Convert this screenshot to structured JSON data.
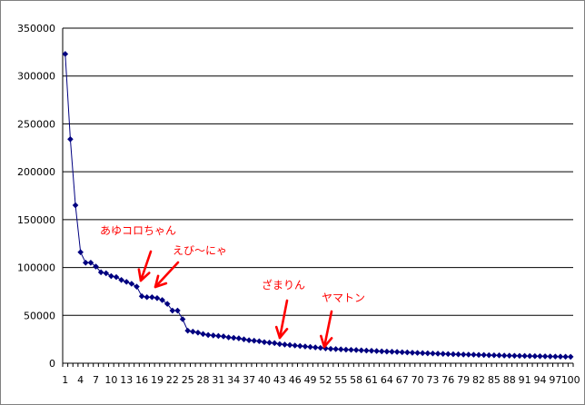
{
  "chart_data": {
    "type": "line",
    "title": "",
    "xlabel": "",
    "ylabel": "",
    "ylim": [
      0,
      350000
    ],
    "y_ticks": [
      0,
      50000,
      100000,
      150000,
      200000,
      250000,
      300000,
      350000
    ],
    "y_tick_labels": [
      "0",
      "50000",
      "100000",
      "150000",
      "200000",
      "250000",
      "300000",
      "350000"
    ],
    "x_count": 100,
    "x_tick_labels": [
      "1",
      "4",
      "7",
      "10",
      "13",
      "16",
      "19",
      "22",
      "25",
      "28",
      "31",
      "34",
      "37",
      "40",
      "43",
      "46",
      "49",
      "52",
      "55",
      "58",
      "61",
      "64",
      "67",
      "70",
      "73",
      "76",
      "79",
      "82",
      "85",
      "88",
      "91",
      "94",
      "97",
      "100"
    ],
    "grid": "horizontal",
    "legend": "none",
    "series": [
      {
        "color": "#000080",
        "marker": "diamond",
        "values": [
          323000,
          234000,
          165000,
          116000,
          105000,
          105000,
          101000,
          95000,
          94000,
          91000,
          90000,
          87000,
          85000,
          83000,
          80000,
          70000,
          69000,
          69000,
          68000,
          66000,
          62000,
          55000,
          55000,
          46000,
          34000,
          33000,
          32000,
          30500,
          29500,
          29000,
          28500,
          28000,
          27000,
          26500,
          26000,
          25000,
          24000,
          23500,
          23000,
          22000,
          21500,
          21000,
          20000,
          19500,
          19000,
          18500,
          18000,
          17500,
          17000,
          16500,
          16000,
          15500,
          15000,
          14800,
          14500,
          14200,
          14000,
          13800,
          13500,
          13200,
          13000,
          12700,
          12400,
          12200,
          12000,
          11800,
          11500,
          11300,
          11000,
          10800,
          10600,
          10400,
          10200,
          10000,
          9800,
          9600,
          9400,
          9300,
          9100,
          9000,
          8900,
          8700,
          8600,
          8400,
          8300,
          8200,
          8000,
          7900,
          7800,
          7700,
          7600,
          7500,
          7400,
          7300,
          7200,
          7100,
          7000,
          6900,
          6800,
          6700
        ]
      }
    ],
    "annotations": [
      {
        "label": "あゆコロちゃん",
        "index": 16,
        "color": "#ff0000"
      },
      {
        "label": "えび〜にゃ",
        "index": 18,
        "color": "#ff0000"
      },
      {
        "label": "ざまりん",
        "index": 43,
        "color": "#ff0000"
      },
      {
        "label": "ヤマトン",
        "index": 52,
        "color": "#ff0000"
      }
    ]
  }
}
